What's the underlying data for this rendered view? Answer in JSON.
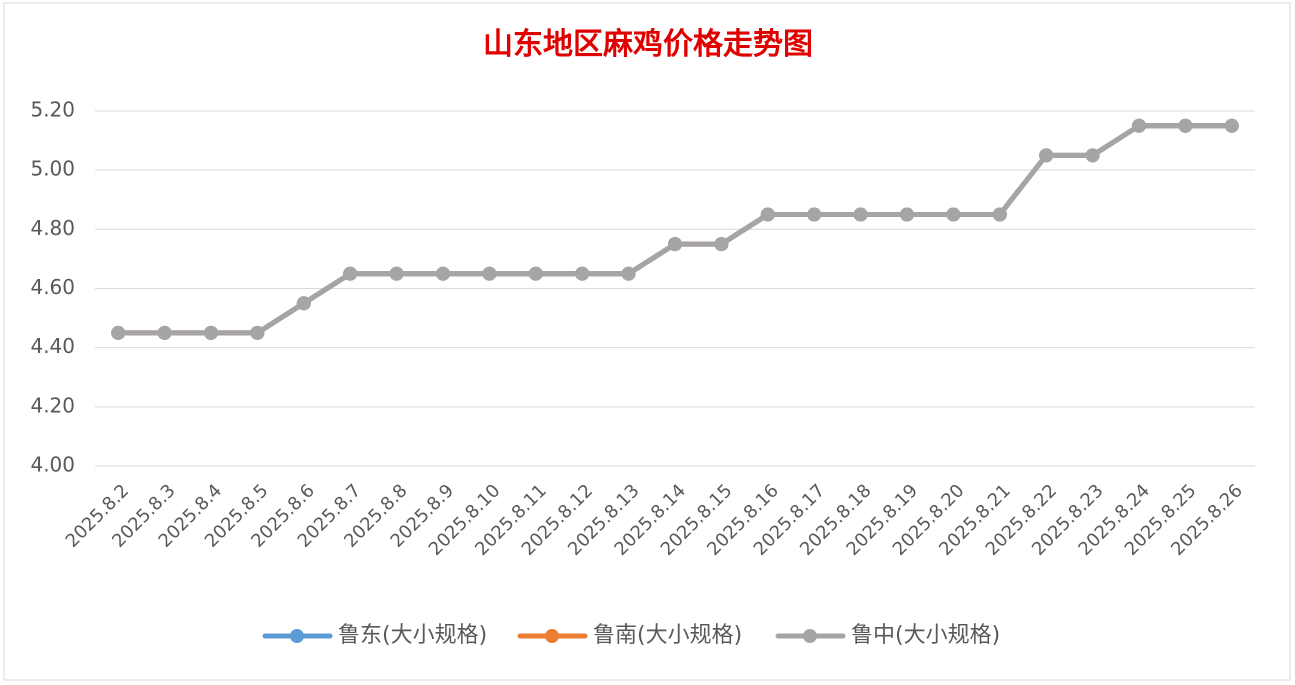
{
  "chart_data": {
    "type": "line",
    "title": "山东地区麻鸡价格走势图",
    "categories": [
      "2025.8.2",
      "2025.8.3",
      "2025.8.4",
      "2025.8.5",
      "2025.8.6",
      "2025.8.7",
      "2025.8.8",
      "2025.8.9",
      "2025.8.10",
      "2025.8.11",
      "2025.8.12",
      "2025.8.13",
      "2025.8.14",
      "2025.8.15",
      "2025.8.16",
      "2025.8.17",
      "2025.8.18",
      "2025.8.19",
      "2025.8.20",
      "2025.8.21",
      "2025.8.22",
      "2025.8.23",
      "2025.8.24",
      "2025.8.25",
      "2025.8.26"
    ],
    "series": [
      {
        "name": "鲁东(大小规格)",
        "color": "#5b9bd5",
        "values": [
          4.45,
          4.45,
          4.45,
          4.45,
          4.55,
          4.65,
          4.65,
          4.65,
          4.65,
          4.65,
          4.65,
          4.65,
          4.75,
          4.75,
          4.85,
          4.85,
          4.85,
          4.85,
          4.85,
          4.85,
          5.05,
          5.05,
          5.15,
          5.15,
          5.15
        ]
      },
      {
        "name": "鲁南(大小规格)",
        "color": "#ed7d31",
        "values": [
          4.45,
          4.45,
          4.45,
          4.45,
          4.55,
          4.65,
          4.65,
          4.65,
          4.65,
          4.65,
          4.65,
          4.65,
          4.75,
          4.75,
          4.85,
          4.85,
          4.85,
          4.85,
          4.85,
          4.85,
          5.05,
          5.05,
          5.15,
          5.15,
          5.15
        ]
      },
      {
        "name": "鲁中(大小规格)",
        "color": "#a5a5a5",
        "values": [
          4.45,
          4.45,
          4.45,
          4.45,
          4.55,
          4.65,
          4.65,
          4.65,
          4.65,
          4.65,
          4.65,
          4.65,
          4.75,
          4.75,
          4.85,
          4.85,
          4.85,
          4.85,
          4.85,
          4.85,
          5.05,
          5.05,
          5.15,
          5.15,
          5.15
        ]
      }
    ],
    "ylim": [
      4.0,
      5.2
    ],
    "yticks": [
      {
        "value": 4.0,
        "label": "4.00"
      },
      {
        "value": 4.2,
        "label": "4.20"
      },
      {
        "value": 4.4,
        "label": "4.40"
      },
      {
        "value": 4.6,
        "label": "4.60"
      },
      {
        "value": 4.8,
        "label": "4.80"
      },
      {
        "value": 5.0,
        "label": "5.00"
      },
      {
        "value": 5.2,
        "label": "5.20"
      }
    ],
    "grid": true,
    "legend": "bottom"
  }
}
